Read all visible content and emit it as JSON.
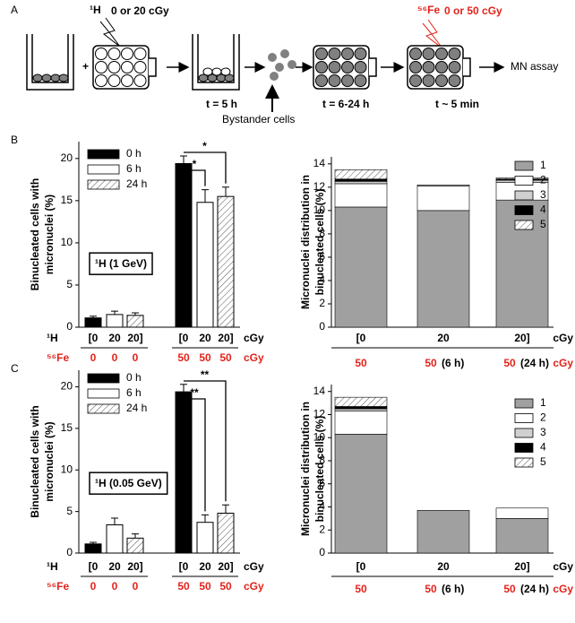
{
  "panel_a": {
    "label": "A",
    "h_isotope": "¹H",
    "h_dose": "0 or 20 cGy",
    "t1": "t = 5 h",
    "bystander": "Bystander cells",
    "fe_isotope": "⁵⁶Fe",
    "fe_dose": "0 or 50 cGy",
    "t2": "t = 6-24 h",
    "t3": "t ~ 5 min",
    "assay": "MN assay"
  },
  "chart_data": [
    {
      "type": "bar",
      "stacked": false,
      "panel_label": "B",
      "ylabel": [
        "Binucleated cells with",
        "micronuclei (%)"
      ],
      "categories": [
        "[0",
        "20",
        "20]",
        "[0",
        "20",
        "20]"
      ],
      "second_row": [
        "0",
        "0",
        "0",
        "50",
        "50",
        "50"
      ],
      "row_labels": [
        "¹H",
        "⁵⁶Fe"
      ],
      "row_units": [
        "cGy",
        "cGy"
      ],
      "ylim": [
        0,
        22
      ],
      "yticks": [
        0,
        5,
        10,
        15,
        20
      ],
      "series": [
        {
          "name": "0 h",
          "color": "#000000",
          "values": [
            1.1,
            null,
            null,
            19.4,
            null,
            null
          ],
          "errors": [
            0.2,
            null,
            null,
            0.9,
            null,
            null
          ]
        },
        {
          "name": "6 h",
          "color": "#ffffff",
          "values": [
            null,
            1.5,
            null,
            null,
            14.8,
            null
          ],
          "errors": [
            null,
            0.4,
            null,
            null,
            1.5,
            null
          ]
        },
        {
          "name": "24 h",
          "color": "#ffffff",
          "pattern": "hatch",
          "values": [
            null,
            null,
            1.4,
            null,
            null,
            15.5
          ],
          "errors": [
            null,
            null,
            0.3,
            null,
            null,
            1.1
          ]
        }
      ],
      "annotation": "¹H (1 GeV)",
      "significance": [
        "*",
        "*"
      ]
    },
    {
      "type": "bar",
      "stacked": true,
      "ylabel": [
        "Micronuclei distribution in",
        "binucleated cells (%)"
      ],
      "categories": [
        "[0",
        "20",
        "20]"
      ],
      "second_row": [
        "50",
        "50",
        "50"
      ],
      "second_row_notes": [
        null,
        "(6 h)",
        "(24 h)"
      ],
      "row_units": [
        "cGy",
        "cGy"
      ],
      "ylim": [
        0,
        14.6
      ],
      "yticks": [
        0,
        2,
        4,
        6,
        8,
        10,
        12,
        14
      ],
      "series": [
        {
          "name": "1",
          "color": "#a0a0a0",
          "values": [
            10.3,
            10.0,
            10.9
          ]
        },
        {
          "name": "2",
          "color": "#ffffff",
          "values": [
            2.0,
            2.1,
            1.5
          ]
        },
        {
          "name": "3",
          "color": "#d0d0d0",
          "values": [
            0.2,
            0.1,
            0.2
          ]
        },
        {
          "name": "4",
          "color": "#000000",
          "values": [
            0.2,
            0,
            0.1
          ]
        },
        {
          "name": "5",
          "color": "#ffffff",
          "pattern": "hatch",
          "values": [
            0.8,
            0,
            0.1
          ]
        }
      ]
    },
    {
      "type": "bar",
      "stacked": false,
      "panel_label": "C",
      "ylabel": [
        "Binucleated cells with",
        "micronuclei (%)"
      ],
      "categories": [
        "[0",
        "20",
        "20]",
        "[0",
        "20",
        "20]"
      ],
      "second_row": [
        "0",
        "0",
        "0",
        "50",
        "50",
        "50"
      ],
      "row_labels": [
        "¹H",
        "⁵⁶Fe"
      ],
      "row_units": [
        "cGy",
        "cGy"
      ],
      "ylim": [
        0,
        22
      ],
      "yticks": [
        0,
        5,
        10,
        15,
        20
      ],
      "series": [
        {
          "name": "0 h",
          "color": "#000000",
          "values": [
            1.1,
            null,
            null,
            19.4,
            null,
            null
          ],
          "errors": [
            0.2,
            null,
            null,
            0.9,
            null,
            null
          ]
        },
        {
          "name": "6 h",
          "color": "#ffffff",
          "values": [
            null,
            3.4,
            null,
            null,
            3.7,
            null
          ],
          "errors": [
            null,
            0.8,
            null,
            null,
            0.9,
            null
          ]
        },
        {
          "name": "24 h",
          "color": "#ffffff",
          "pattern": "hatch",
          "values": [
            null,
            null,
            1.8,
            null,
            null,
            4.8
          ],
          "errors": [
            null,
            null,
            0.5,
            null,
            null,
            1.0
          ]
        }
      ],
      "annotation": "¹H (0.05 GeV)",
      "significance": [
        "**",
        "**"
      ]
    },
    {
      "type": "bar",
      "stacked": true,
      "ylabel": [
        "Micronuclei distribution in",
        "binucleated cells (%)"
      ],
      "categories": [
        "[0",
        "20",
        "20]"
      ],
      "second_row": [
        "50",
        "50",
        "50"
      ],
      "second_row_notes": [
        null,
        "(6 h)",
        "(24 h)"
      ],
      "row_units": [
        "cGy",
        "cGy"
      ],
      "ylim": [
        0,
        14.6
      ],
      "yticks": [
        0,
        2,
        4,
        6,
        8,
        10,
        12,
        14
      ],
      "series": [
        {
          "name": "1",
          "color": "#a0a0a0",
          "values": [
            10.3,
            3.7,
            3.0
          ]
        },
        {
          "name": "2",
          "color": "#ffffff",
          "values": [
            2.0,
            0,
            0.9
          ]
        },
        {
          "name": "3",
          "color": "#d0d0d0",
          "values": [
            0.2,
            0,
            0
          ]
        },
        {
          "name": "4",
          "color": "#000000",
          "values": [
            0.2,
            0,
            0
          ]
        },
        {
          "name": "5",
          "color": "#ffffff",
          "pattern": "hatch",
          "values": [
            0.8,
            0,
            0
          ]
        }
      ]
    }
  ]
}
